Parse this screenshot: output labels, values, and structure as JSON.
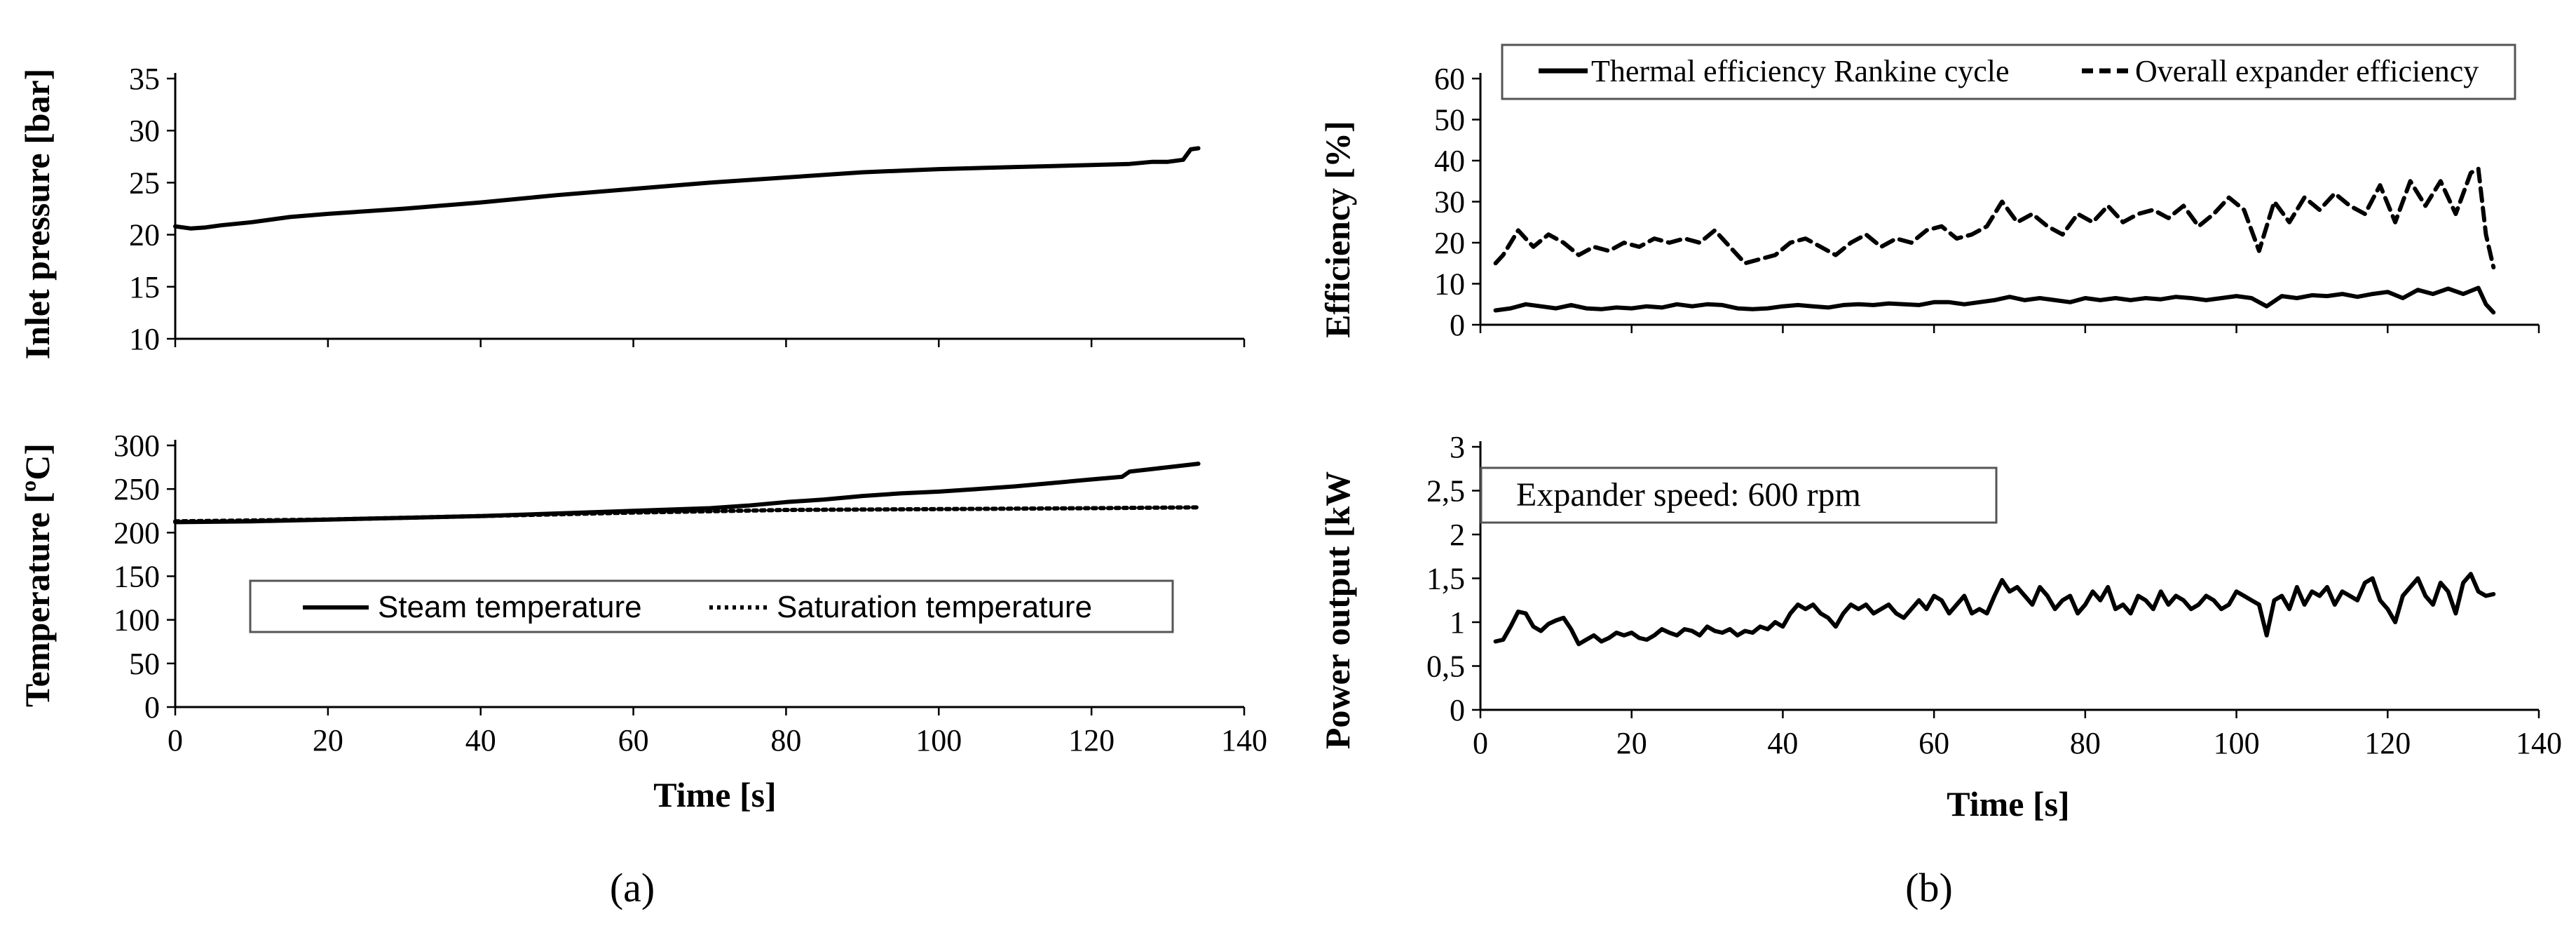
{
  "chart_data": [
    {
      "id": "a-top",
      "type": "line",
      "title": "",
      "xlabel": "",
      "ylabel": "Inlet pressure [bar]",
      "xlim": [
        0,
        140
      ],
      "ylim": [
        10,
        35
      ],
      "xticks": [
        0,
        20,
        40,
        60,
        80,
        100,
        120,
        140
      ],
      "yticks": [
        "10",
        "15",
        "20",
        "25",
        "30",
        "35"
      ],
      "series": [
        {
          "name": "Inlet pressure",
          "style": "solid",
          "x": [
            0,
            2,
            4,
            6,
            10,
            15,
            20,
            30,
            40,
            50,
            60,
            70,
            80,
            90,
            100,
            110,
            115,
            120,
            125,
            128,
            130,
            132,
            133,
            134
          ],
          "y": [
            20.8,
            20.6,
            20.7,
            20.9,
            21.2,
            21.7,
            22.0,
            22.5,
            23.1,
            23.8,
            24.4,
            25.0,
            25.5,
            26.0,
            26.3,
            26.5,
            26.6,
            26.7,
            26.8,
            27.0,
            27.0,
            27.2,
            28.2,
            28.3
          ]
        }
      ]
    },
    {
      "id": "a-bottom",
      "type": "line",
      "title": "",
      "xlabel": "Time [s]",
      "ylabel": "Temperature [ºC]",
      "xlim": [
        0,
        140
      ],
      "ylim": [
        0,
        300
      ],
      "xticks": [
        "0",
        "20",
        "40",
        "60",
        "80",
        "100",
        "120",
        "140"
      ],
      "yticks": [
        "0",
        "50",
        "100",
        "150",
        "200",
        "250",
        "300"
      ],
      "legend_location": "center",
      "series": [
        {
          "name": "Steam temperature",
          "style": "solid",
          "x": [
            0,
            10,
            20,
            30,
            40,
            50,
            60,
            70,
            75,
            80,
            85,
            90,
            95,
            100,
            105,
            110,
            115,
            120,
            124,
            125,
            128,
            130,
            132,
            134
          ],
          "y": [
            212,
            213,
            215,
            217,
            219,
            222,
            225,
            228,
            231,
            235,
            238,
            242,
            245,
            247,
            250,
            253,
            257,
            261,
            264,
            270,
            273,
            275,
            277,
            279
          ]
        },
        {
          "name": "Saturation temperature",
          "style": "dotted",
          "x": [
            0,
            20,
            40,
            60,
            80,
            100,
            120,
            134
          ],
          "y": [
            213,
            215,
            219,
            223,
            226,
            227,
            228,
            229
          ]
        }
      ]
    },
    {
      "id": "b-top",
      "type": "line",
      "title": "",
      "xlabel": "",
      "ylabel": "Efficiency [%]",
      "xlim": [
        0,
        140
      ],
      "ylim": [
        0,
        60
      ],
      "xticks": [
        0,
        20,
        40,
        60,
        80,
        100,
        120,
        140
      ],
      "yticks": [
        "0",
        "10",
        "20",
        "30",
        "40",
        "50",
        "60"
      ],
      "legend_location": "top",
      "series": [
        {
          "name": "Thermal efficiency Rankine cycle",
          "style": "solid",
          "x": [
            2,
            4,
            6,
            8,
            10,
            12,
            14,
            16,
            18,
            20,
            22,
            24,
            26,
            28,
            30,
            32,
            34,
            36,
            38,
            40,
            42,
            44,
            46,
            48,
            50,
            52,
            54,
            56,
            58,
            60,
            62,
            64,
            66,
            68,
            70,
            72,
            74,
            76,
            78,
            80,
            82,
            84,
            86,
            88,
            90,
            92,
            94,
            96,
            98,
            100,
            102,
            104,
            106,
            108,
            110,
            112,
            114,
            116,
            118,
            120,
            122,
            124,
            126,
            128,
            130,
            132,
            133,
            134
          ],
          "y": [
            3.5,
            4.0,
            5.0,
            4.5,
            4.0,
            4.8,
            4.0,
            3.8,
            4.2,
            4.0,
            4.5,
            4.2,
            5.0,
            4.5,
            5.0,
            4.8,
            4.0,
            3.8,
            4.0,
            4.5,
            4.8,
            4.5,
            4.2,
            4.8,
            5.0,
            4.8,
            5.2,
            5.0,
            4.8,
            5.5,
            5.5,
            5.0,
            5.5,
            6.0,
            6.8,
            6.0,
            6.5,
            6.0,
            5.5,
            6.5,
            6.0,
            6.5,
            6.0,
            6.5,
            6.2,
            6.8,
            6.5,
            6.0,
            6.5,
            7.0,
            6.5,
            4.5,
            7.0,
            6.5,
            7.2,
            7.0,
            7.5,
            6.8,
            7.5,
            8.0,
            6.5,
            8.5,
            7.5,
            8.8,
            7.5,
            9.0,
            5.0,
            3.0
          ]
        },
        {
          "name": "Overall expander efficiency",
          "style": "dashed",
          "x": [
            2,
            3,
            5,
            7,
            9,
            11,
            13,
            15,
            17,
            19,
            21,
            23,
            25,
            27,
            29,
            31,
            33,
            35,
            37,
            39,
            41,
            43,
            45,
            47,
            49,
            51,
            53,
            55,
            57,
            59,
            61,
            63,
            65,
            67,
            69,
            71,
            73,
            75,
            77,
            79,
            81,
            83,
            85,
            87,
            89,
            91,
            93,
            95,
            97,
            99,
            101,
            103,
            105,
            107,
            109,
            111,
            113,
            115,
            117,
            119,
            121,
            123,
            125,
            127,
            129,
            131,
            132,
            133,
            134
          ],
          "y": [
            15,
            17,
            23,
            19,
            22,
            20,
            17,
            19,
            18,
            20,
            19,
            21,
            20,
            21,
            20,
            23,
            19,
            15,
            16,
            17,
            20,
            21,
            19,
            17,
            20,
            22,
            19,
            21,
            20,
            23,
            24,
            21,
            22,
            24,
            30,
            25,
            27,
            24,
            22,
            27,
            25,
            29,
            25,
            27,
            28,
            26,
            29,
            24,
            27,
            31,
            28,
            18,
            30,
            25,
            31,
            28,
            32,
            29,
            27,
            34,
            25,
            35,
            29,
            35,
            27,
            37,
            38,
            22,
            14
          ]
        }
      ]
    },
    {
      "id": "b-bottom",
      "type": "line",
      "title": "",
      "xlabel": "Time [s]",
      "ylabel": "Power output  [kW",
      "xlim": [
        0,
        140
      ],
      "ylim": [
        0,
        3
      ],
      "xticks": [
        "0",
        "20",
        "40",
        "60",
        "80",
        "100",
        "120",
        "140"
      ],
      "yticks": [
        "0",
        "0,5",
        "1",
        "1,5",
        "2",
        "2,5",
        "3"
      ],
      "annotation": "Expander speed: 600 rpm",
      "series": [
        {
          "name": "Power output",
          "style": "solid",
          "x": [
            2,
            3,
            4,
            5,
            6,
            7,
            8,
            9,
            10,
            11,
            12,
            13,
            14,
            15,
            16,
            17,
            18,
            19,
            20,
            21,
            22,
            23,
            24,
            25,
            26,
            27,
            28,
            29,
            30,
            31,
            32,
            33,
            34,
            35,
            36,
            37,
            38,
            39,
            40,
            41,
            42,
            43,
            44,
            45,
            46,
            47,
            48,
            49,
            50,
            51,
            52,
            53,
            54,
            55,
            56,
            57,
            58,
            59,
            60,
            61,
            62,
            63,
            64,
            65,
            66,
            67,
            68,
            69,
            70,
            71,
            72,
            73,
            74,
            75,
            76,
            77,
            78,
            79,
            80,
            81,
            82,
            83,
            84,
            85,
            86,
            87,
            88,
            89,
            90,
            91,
            92,
            93,
            94,
            95,
            96,
            97,
            98,
            99,
            100,
            101,
            102,
            103,
            104,
            105,
            106,
            107,
            108,
            109,
            110,
            111,
            112,
            113,
            114,
            115,
            116,
            117,
            118,
            119,
            120,
            121,
            122,
            123,
            124,
            125,
            126,
            127,
            128,
            129,
            130,
            131,
            132,
            133,
            134
          ],
          "y": [
            0.78,
            0.8,
            0.95,
            1.12,
            1.1,
            0.95,
            0.9,
            0.98,
            1.02,
            1.05,
            0.92,
            0.75,
            0.8,
            0.85,
            0.78,
            0.82,
            0.88,
            0.85,
            0.88,
            0.82,
            0.8,
            0.85,
            0.92,
            0.88,
            0.85,
            0.92,
            0.9,
            0.85,
            0.95,
            0.9,
            0.88,
            0.92,
            0.85,
            0.9,
            0.88,
            0.95,
            0.92,
            1.0,
            0.95,
            1.1,
            1.2,
            1.15,
            1.2,
            1.1,
            1.05,
            0.95,
            1.1,
            1.2,
            1.15,
            1.2,
            1.1,
            1.15,
            1.2,
            1.1,
            1.05,
            1.15,
            1.25,
            1.15,
            1.3,
            1.25,
            1.1,
            1.2,
            1.3,
            1.1,
            1.15,
            1.1,
            1.3,
            1.48,
            1.35,
            1.4,
            1.3,
            1.2,
            1.4,
            1.3,
            1.15,
            1.25,
            1.3,
            1.1,
            1.2,
            1.35,
            1.25,
            1.4,
            1.15,
            1.2,
            1.1,
            1.3,
            1.25,
            1.15,
            1.35,
            1.2,
            1.3,
            1.25,
            1.15,
            1.2,
            1.3,
            1.25,
            1.15,
            1.2,
            1.35,
            1.3,
            1.25,
            1.2,
            0.85,
            1.25,
            1.3,
            1.15,
            1.4,
            1.2,
            1.35,
            1.3,
            1.4,
            1.2,
            1.35,
            1.3,
            1.25,
            1.45,
            1.5,
            1.25,
            1.15,
            1.0,
            1.3,
            1.4,
            1.5,
            1.3,
            1.2,
            1.45,
            1.35,
            1.1,
            1.45,
            1.55,
            1.35,
            1.3,
            1.32
          ]
        }
      ]
    }
  ],
  "panel_labels": [
    "(a)",
    "(b)"
  ]
}
